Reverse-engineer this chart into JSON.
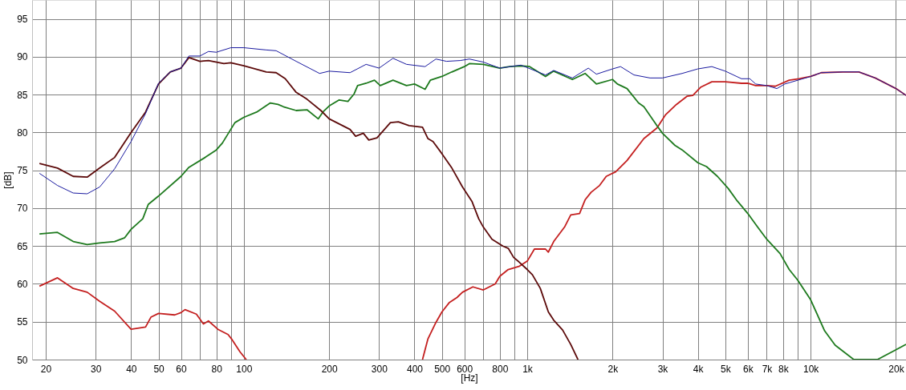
{
  "chart_data": {
    "type": "line",
    "xlabel": "[Hz]",
    "ylabel": "[dB]",
    "log": "x",
    "grid": true,
    "line_style": "solid",
    "marker": "none",
    "xlim": [
      17.9,
      21700
    ],
    "ylim": [
      50,
      97.5
    ],
    "xticks": [
      20,
      30,
      40,
      50,
      60,
      {
        "value": 70,
        "label": null
      },
      80,
      {
        "value": 90,
        "label": null
      },
      100,
      200,
      300,
      400,
      500,
      600,
      {
        "value": 700,
        "label": null
      },
      800,
      {
        "value": 900,
        "label": null
      },
      {
        "value": 1000,
        "label": "1k"
      },
      {
        "value": 2000,
        "label": "2k"
      },
      {
        "value": 3000,
        "label": "3k"
      },
      {
        "value": 4000,
        "label": "4k"
      },
      {
        "value": 5000,
        "label": "5k"
      },
      {
        "value": 6000,
        "label": "6k"
      },
      {
        "value": 7000,
        "label": "7k"
      },
      {
        "value": 8000,
        "label": "8k"
      },
      {
        "value": 9000,
        "label": null
      },
      {
        "value": 10000,
        "label": "10k"
      },
      {
        "value": 20000,
        "label": "20k"
      }
    ],
    "yticks": [
      50,
      55,
      60,
      65,
      70,
      75,
      80,
      85,
      90,
      95
    ],
    "series": [
      {
        "color": "#1a1aa0",
        "x": [
          19,
          22,
          25,
          28,
          31,
          35,
          40,
          45,
          50,
          55,
          60,
          64,
          70,
          75,
          80,
          90,
          100,
          120,
          130,
          153,
          185,
          200,
          237,
          270,
          300,
          336,
          375,
          436,
          476,
          519,
          579,
          625,
          700,
          800,
          950,
          1160,
          1240,
          1443,
          1643,
          1754,
          2000,
          2135,
          2380,
          2712,
          3000,
          3520,
          4000,
          4480,
          5000,
          5700,
          6100,
          6400,
          7000,
          7600,
          8100,
          9000,
          10000,
          10900,
          13000,
          14800,
          16900,
          20000,
          21700
        ],
        "values": [
          74.6,
          73.0,
          72.0,
          71.9,
          72.8,
          75.2,
          78.8,
          82.5,
          86.5,
          88.0,
          88.5,
          90.1,
          90.1,
          90.7,
          90.6,
          91.2,
          91.2,
          90.9,
          90.8,
          89.4,
          87.8,
          88.1,
          87.9,
          89.0,
          88.5,
          89.8,
          89.0,
          88.7,
          89.7,
          89.4,
          89.5,
          89.7,
          89.3,
          88.5,
          88.9,
          87.6,
          88.2,
          87.2,
          88.5,
          87.7,
          88.4,
          88.7,
          87.6,
          87.2,
          87.2,
          87.8,
          88.4,
          88.7,
          88.1,
          87.1,
          87.1,
          86.4,
          86.2,
          85.8,
          86.4,
          86.9,
          87.4,
          87.9,
          88.0,
          88.0,
          87.2,
          85.8,
          84.9
        ]
      },
      {
        "color": "#5c0a0a",
        "x": [
          19,
          22,
          25,
          28,
          31,
          35,
          40,
          45,
          50,
          55,
          60,
          64,
          70,
          75,
          85,
          90,
          100,
          120,
          130,
          140,
          153,
          167,
          187,
          200,
          237,
          248,
          264,
          276,
          295,
          329,
          351,
          383,
          427,
          446,
          465,
          500,
          542,
          591,
          638,
          674,
          700,
          751,
          820,
          857,
          895,
          935,
          1000,
          1043,
          1112,
          1187,
          1240,
          1333,
          1424,
          1510
        ],
        "values": [
          75.9,
          75.3,
          74.2,
          74.1,
          75.3,
          76.7,
          80.0,
          82.7,
          86.4,
          88.0,
          88.5,
          89.9,
          89.4,
          89.5,
          89.1,
          89.2,
          88.8,
          88.0,
          87.9,
          87.1,
          85.3,
          84.4,
          82.9,
          81.8,
          80.4,
          79.5,
          79.9,
          79.0,
          79.3,
          81.3,
          81.4,
          80.9,
          80.7,
          79.2,
          78.8,
          77.2,
          75.3,
          72.8,
          70.9,
          68.6,
          67.5,
          65.9,
          65.0,
          64.7,
          63.5,
          62.9,
          61.9,
          61.2,
          59.4,
          56.3,
          55.2,
          53.9,
          52.0,
          50.0
        ]
      },
      {
        "color": "#1e7a1e",
        "x": [
          19,
          22,
          25,
          28,
          31,
          35,
          38,
          40,
          44,
          46,
          50,
          60,
          64,
          73,
          80,
          84,
          93,
          100,
          111,
          124,
          132,
          138,
          153,
          167,
          183,
          190,
          200,
          217,
          233,
          245,
          252,
          270,
          289,
          303,
          336,
          375,
          400,
          436,
          455,
          500,
          542,
          600,
          625,
          700,
          800,
          866,
          950,
          1020,
          1160,
          1240,
          1443,
          1600,
          1754,
          2000,
          2080,
          2250,
          2470,
          2580,
          2870,
          3000,
          3320,
          3520,
          4000,
          4290,
          4690,
          5120,
          5470,
          6000,
          6500,
          7000,
          7800,
          8400,
          9000,
          10000,
          11200,
          12200,
          14200,
          17200,
          20000,
          21700
        ],
        "values": [
          66.6,
          66.8,
          65.6,
          65.2,
          65.4,
          65.6,
          66.1,
          67.2,
          68.6,
          70.5,
          71.6,
          74.2,
          75.4,
          76.7,
          77.7,
          78.6,
          81.3,
          82.0,
          82.7,
          83.9,
          83.7,
          83.4,
          82.9,
          83.0,
          81.8,
          82.7,
          83.5,
          84.3,
          84.1,
          85.1,
          86.2,
          86.5,
          86.9,
          86.2,
          86.9,
          86.2,
          86.4,
          85.7,
          86.9,
          87.4,
          88.0,
          88.7,
          89.1,
          89.0,
          88.5,
          88.7,
          88.8,
          88.7,
          87.4,
          88.1,
          87.0,
          87.8,
          86.4,
          87.0,
          86.4,
          85.8,
          83.9,
          83.4,
          80.9,
          79.9,
          78.3,
          77.7,
          76.0,
          75.5,
          74.2,
          72.6,
          71.1,
          69.3,
          67.5,
          65.9,
          64.0,
          61.9,
          60.5,
          57.9,
          53.8,
          51.9,
          50.0,
          50.0,
          51.3,
          52.0
        ]
      },
      {
        "color": "#c42020",
        "x": [
          19,
          22,
          25,
          28,
          31,
          35,
          40,
          45,
          47,
          50,
          57,
          60,
          62,
          68,
          72,
          75,
          81,
          88,
          91,
          97,
          102,
          200,
          427,
          446,
          476,
          500,
          530,
          565,
          591,
          643,
          700,
          771,
          800,
          857,
          935,
          1000,
          1060,
          1160,
          1187,
          1240,
          1354,
          1424,
          1530,
          1600,
          1680,
          1800,
          1900,
          2050,
          2250,
          2580,
          2870,
          3070,
          3360,
          3670,
          3840,
          4100,
          4480,
          5000,
          5700,
          6000,
          6400,
          7000,
          7500,
          8400,
          9100,
          10000,
          10900,
          13000,
          14800,
          16900,
          20000,
          21700
        ],
        "values": [
          59.7,
          60.8,
          59.4,
          58.9,
          57.7,
          56.4,
          54.0,
          54.3,
          55.6,
          56.1,
          55.9,
          56.2,
          56.6,
          56.0,
          54.7,
          55.1,
          54.0,
          53.3,
          52.6,
          51.0,
          50.0,
          null,
          50.0,
          52.7,
          54.9,
          56.3,
          57.5,
          58.2,
          58.9,
          59.6,
          59.2,
          60.0,
          61.0,
          61.9,
          62.3,
          63.0,
          64.6,
          64.6,
          64.2,
          65.6,
          67.5,
          69.1,
          69.3,
          71.1,
          72.1,
          73.0,
          74.2,
          74.8,
          76.3,
          79.2,
          80.6,
          82.3,
          83.7,
          84.8,
          84.9,
          86.0,
          86.7,
          86.7,
          86.5,
          86.5,
          86.2,
          86.2,
          86.1,
          86.9,
          87.1,
          87.4,
          87.9,
          88.0,
          88.0,
          87.2,
          85.8,
          84.9
        ]
      }
    ]
  }
}
